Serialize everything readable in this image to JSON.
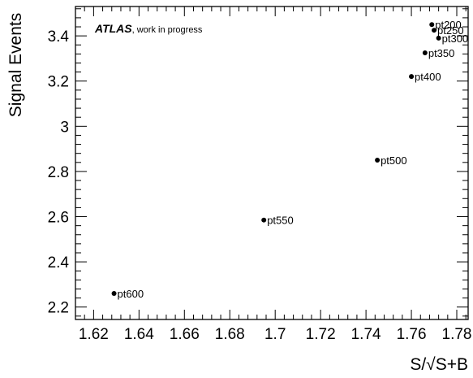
{
  "chart_data": {
    "type": "scatter",
    "title": "",
    "xlabel": "S/√S+B",
    "ylabel": "Signal Events",
    "xlim": [
      1.612,
      1.785
    ],
    "ylim": [
      2.145,
      3.53
    ],
    "grid": false,
    "xticks": [
      1.62,
      1.64,
      1.66,
      1.68,
      1.7,
      1.72,
      1.74,
      1.76,
      1.78
    ],
    "xtick_labels": [
      "1.62",
      "1.64",
      "1.66",
      "1.68",
      "1.7",
      "1.72",
      "1.74",
      "1.76",
      "1.78"
    ],
    "yticks": [
      2.2,
      2.4,
      2.6,
      2.8,
      3.0,
      3.2,
      3.4
    ],
    "ytick_labels": [
      "2.2",
      "2.4",
      "2.6",
      "2.8",
      "3",
      "3.2",
      "3.4"
    ],
    "annotation": {
      "experiment": "ATLAS",
      "note": ", work in progress"
    },
    "points": [
      {
        "label": "pt200",
        "x": 1.769,
        "y": 3.45
      },
      {
        "label": "pt250",
        "x": 1.77,
        "y": 3.425
      },
      {
        "label": "pt300",
        "x": 1.772,
        "y": 3.39
      },
      {
        "label": "pt350",
        "x": 1.766,
        "y": 3.325
      },
      {
        "label": "pt400",
        "x": 1.76,
        "y": 3.22
      },
      {
        "label": "pt500",
        "x": 1.745,
        "y": 2.85
      },
      {
        "label": "pt550",
        "x": 1.695,
        "y": 2.585
      },
      {
        "label": "pt600",
        "x": 1.629,
        "y": 2.26
      }
    ]
  }
}
